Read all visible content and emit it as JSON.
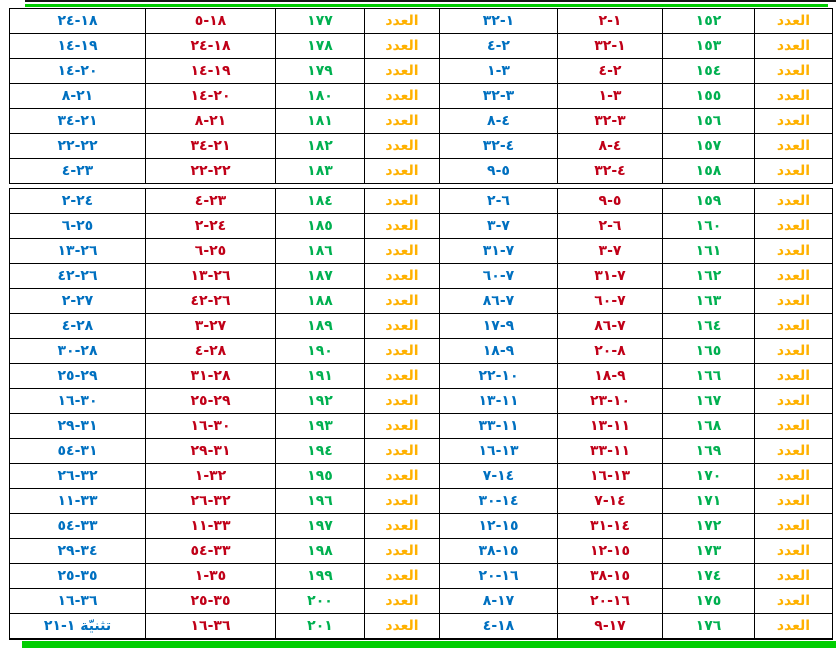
{
  "book_label": "العدد",
  "deuteronomy_note": "تثنيّة ١-٢١",
  "colors": {
    "label_gold": "#FFB100",
    "day_green": "#00B050",
    "start_red": "#C00018",
    "end_blue": "#0070C0",
    "divider_green": "#00CE00",
    "border_black": "#000000"
  },
  "sections": [
    {
      "rows": [
        {
          "num_r": "١٥٢",
          "red_r": "١-٢",
          "blue_r": "١-٣٢",
          "num_l": "١٧٧",
          "red_l": "١٨-٥",
          "blue_l": "١٨-٢٤"
        },
        {
          "num_r": "١٥٣",
          "red_r": "١-٣٢",
          "blue_r": "٢-٤",
          "num_l": "١٧٨",
          "red_l": "١٨-٢٤",
          "blue_l": "١٩-١٤"
        },
        {
          "num_r": "١٥٤",
          "red_r": "٢-٤",
          "blue_r": "٣-١",
          "num_l": "١٧٩",
          "red_l": "١٩-١٤",
          "blue_l": "٢٠-١٤"
        },
        {
          "num_r": "١٥٥",
          "red_r": "٣-١",
          "blue_r": "٣-٣٢",
          "num_l": "١٨٠",
          "red_l": "٢٠-١٤",
          "blue_l": "٢١-٨"
        },
        {
          "num_r": "١٥٦",
          "red_r": "٣-٣٢",
          "blue_r": "٤-٨",
          "num_l": "١٨١",
          "red_l": "٢١-٨",
          "blue_l": "٢١-٣٤"
        },
        {
          "num_r": "١٥٧",
          "red_r": "٤-٨",
          "blue_r": "٤-٣٢",
          "num_l": "١٨٢",
          "red_l": "٢١-٣٤",
          "blue_l": "٢٢-٢٢"
        },
        {
          "num_r": "١٥٨",
          "red_r": "٤-٣٢",
          "blue_r": "٥-٩",
          "num_l": "١٨٣",
          "red_l": "٢٢-٢٢",
          "blue_l": "٢٣-٤"
        }
      ]
    },
    {
      "rows": [
        {
          "num_r": "١٥٩",
          "red_r": "٥-٩",
          "blue_r": "٦-٢",
          "num_l": "١٨٤",
          "red_l": "٢٣-٤",
          "blue_l": "٢٤-٢"
        },
        {
          "num_r": "١٦٠",
          "red_r": "٦-٢",
          "blue_r": "٧-٣",
          "num_l": "١٨٥",
          "red_l": "٢٤-٢",
          "blue_l": "٢٥-٦"
        },
        {
          "num_r": "١٦١",
          "red_r": "٧-٣",
          "blue_r": "٧-٣١",
          "num_l": "١٨٦",
          "red_l": "٢٥-٦",
          "blue_l": "٢٦-١٣"
        },
        {
          "num_r": "١٦٢",
          "red_r": "٧-٣١",
          "blue_r": "٧-٦٠",
          "num_l": "١٨٧",
          "red_l": "٢٦-١٣",
          "blue_l": "٢٦-٤٢"
        },
        {
          "num_r": "١٦٣",
          "red_r": "٧-٦٠",
          "blue_r": "٧-٨٦",
          "num_l": "١٨٨",
          "red_l": "٢٦-٤٢",
          "blue_l": "٢٧-٢"
        },
        {
          "num_r": "١٦٤",
          "red_r": "٧-٨٦",
          "blue_r": "٩-١٧",
          "num_l": "١٨٩",
          "red_l": "٢٧-٣",
          "blue_l": "٢٨-٤"
        },
        {
          "num_r": "١٦٥",
          "red_r": "٨-٢٠",
          "blue_r": "٩-١٨",
          "num_l": "١٩٠",
          "red_l": "٢٨-٤",
          "blue_l": "٢٨-٣٠"
        },
        {
          "num_r": "١٦٦",
          "red_r": "٩-١٨",
          "blue_r": "١٠-٢٢",
          "num_l": "١٩١",
          "red_l": "٢٨-٣١",
          "blue_l": "٢٩-٢٥"
        },
        {
          "num_r": "١٦٧",
          "red_r": "١٠-٢٣",
          "blue_r": "١١-١٣",
          "num_l": "١٩٢",
          "red_l": "٢٩-٢٥",
          "blue_l": "٣٠-١٦"
        },
        {
          "num_r": "١٦٨",
          "red_r": "١١-١٣",
          "blue_r": "١١-٣٣",
          "num_l": "١٩٣",
          "red_l": "٣٠-١٦",
          "blue_l": "٣١-٢٩"
        },
        {
          "num_r": "١٦٩",
          "red_r": "١١-٣٣",
          "blue_r": "١٣-١٦",
          "num_l": "١٩٤",
          "red_l": "٣١-٢٩",
          "blue_l": "٣١-٥٤"
        },
        {
          "num_r": "١٧٠",
          "red_r": "١٣-١٦",
          "blue_r": "١٤-٧",
          "num_l": "١٩٥",
          "red_l": "٣٢-١",
          "blue_l": "٣٢-٢٦"
        },
        {
          "num_r": "١٧١",
          "red_r": "١٤-٧",
          "blue_r": "١٤-٣٠",
          "num_l": "١٩٦",
          "red_l": "٣٢-٢٦",
          "blue_l": "٣٣-١١"
        },
        {
          "num_r": "١٧٢",
          "red_r": "١٤-٣١",
          "blue_r": "١٥-١٢",
          "num_l": "١٩٧",
          "red_l": "٣٣-١١",
          "blue_l": "٣٣-٥٤"
        },
        {
          "num_r": "١٧٣",
          "red_r": "١٥-١٢",
          "blue_r": "١٥-٣٨",
          "num_l": "١٩٨",
          "red_l": "٣٣-٥٤",
          "blue_l": "٣٤-٢٩"
        },
        {
          "num_r": "١٧٤",
          "red_r": "١٥-٣٨",
          "blue_r": "١٦-٢٠",
          "num_l": "١٩٩",
          "red_l": "٣٥-١",
          "blue_l": "٣٥-٢٥"
        },
        {
          "num_r": "١٧٥",
          "red_r": "١٦-٢٠",
          "blue_r": "١٧-٨",
          "num_l": "٢٠٠",
          "red_l": "٣٥-٢٥",
          "blue_l": "٣٦-١٦"
        },
        {
          "num_r": "١٧٦",
          "red_r": "١٧-٩",
          "blue_r": "١٨-٤",
          "num_l": "٢٠١",
          "red_l": "٣٦-١٦",
          "blue_l": "تثنيّة ١-٢١"
        }
      ]
    }
  ]
}
